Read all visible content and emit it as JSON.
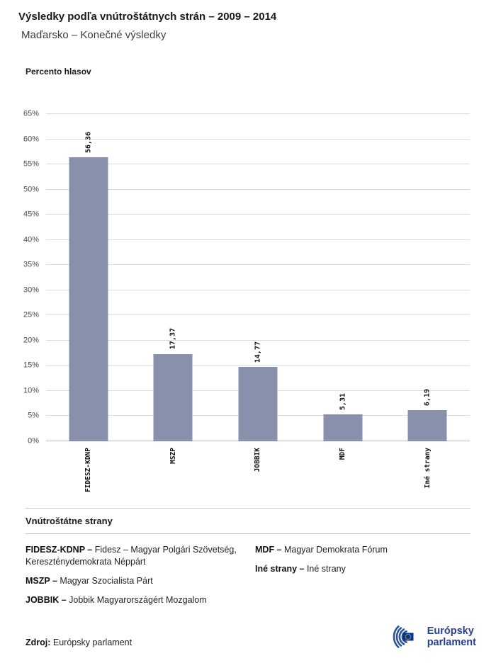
{
  "header": {
    "title": "Výsledky podľa vnútroštátnych strán – 2009 – 2014",
    "subtitle": "Maďarsko – Konečné výsledky"
  },
  "chart_data": {
    "type": "bar",
    "title": "Výsledky podľa vnútroštátnych strán – 2009 – 2014 (Maďarsko – Konečné výsledky)",
    "ylabel": "Percento hlasov",
    "xlabel": "",
    "categories": [
      "FIDESZ-KDNP",
      "MSZP",
      "JOBBIK",
      "MDF",
      "Iné strany"
    ],
    "values": [
      56.36,
      17.37,
      14.77,
      5.31,
      6.19
    ],
    "value_labels": [
      "56,36",
      "17,37",
      "14,77",
      "5,31",
      "6,19"
    ],
    "ylim": [
      0,
      65
    ],
    "ytick_step": 5,
    "ytick_suffix": "%",
    "grid": true,
    "legend_position": "none",
    "bar_color": "#8890ac"
  },
  "legend": {
    "heading": "Vnútroštátne strany",
    "columns": [
      [
        {
          "term": "FIDESZ-KDNP –",
          "definition": "Fidesz – Magyar Polgári Szövetség, Kereszténydemokrata Néppárt"
        },
        {
          "term": "MSZP –",
          "definition": "Magyar Szocialista Párt"
        },
        {
          "term": "JOBBIK –",
          "definition": "Jobbik Magyarországért Mozgalom"
        }
      ],
      [
        {
          "term": "MDF –",
          "definition": "Magyar Demokrata Fórum"
        },
        {
          "term": "Iné strany –",
          "definition": "Iné strany"
        }
      ]
    ]
  },
  "footer": {
    "source_label": "Zdroj:",
    "source_value": "Európsky parlament",
    "logo_line1": "Európsky",
    "logo_line2": "parlament",
    "logo_text_color": "#24408f",
    "logo_arc_color": "#2d5496",
    "eu_flag_blue": "#003399",
    "eu_star_yellow": "#ffcc00"
  }
}
